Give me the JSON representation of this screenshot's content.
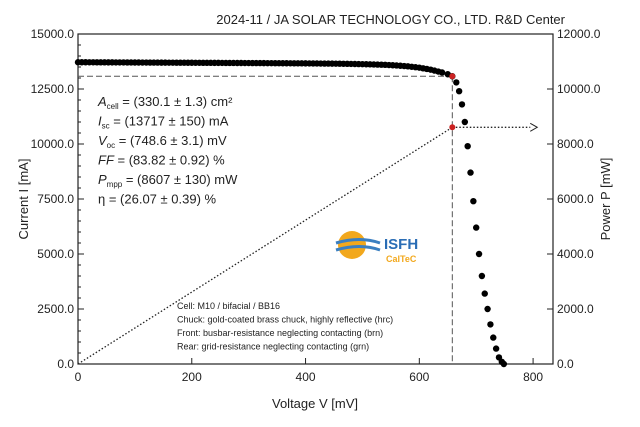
{
  "chart_data": {
    "type": "scatter",
    "title": "2024-11 / JA SOLAR TECHNOLOGY CO., LTD. R&D Center",
    "xlabel": "Voltage V [mV]",
    "ylabel": "Current I [mA]",
    "y2label": "Power P [mW]",
    "xlim": [
      0,
      835
    ],
    "ylim": [
      0,
      15000
    ],
    "y2lim": [
      0,
      12000
    ],
    "xticks": [
      "0",
      "200",
      "400",
      "600",
      "800"
    ],
    "xtick_values": [
      0,
      200,
      400,
      600,
      800
    ],
    "yticks": [
      "0.0",
      "2500.0",
      "5000.0",
      "7500.0",
      "10000.0",
      "12500.0",
      "15000.0"
    ],
    "ytick_values": [
      0,
      2500,
      5000,
      7500,
      10000,
      12500,
      15000
    ],
    "y2ticks": [
      "0.0",
      "2000.0",
      "4000.0",
      "6000.0",
      "8000.0",
      "10000.0",
      "12000.0"
    ],
    "y2tick_values": [
      0,
      2000,
      4000,
      6000,
      8000,
      10000,
      12000
    ],
    "grid": false,
    "iv_curve": {
      "voltage_mV": [
        0,
        20,
        40,
        60,
        80,
        100,
        120,
        140,
        160,
        180,
        200,
        220,
        240,
        260,
        280,
        300,
        320,
        340,
        360,
        380,
        400,
        420,
        440,
        460,
        480,
        500,
        520,
        540,
        560,
        580,
        600,
        620,
        640,
        650,
        658,
        665,
        670,
        675,
        680,
        685,
        690,
        695,
        700,
        705,
        710,
        715,
        720,
        725,
        730,
        735,
        740,
        745,
        748.6
      ],
      "current_mA": [
        13717,
        13715,
        13712,
        13710,
        13708,
        13705,
        13703,
        13700,
        13698,
        13695,
        13693,
        13690,
        13688,
        13685,
        13682,
        13680,
        13677,
        13674,
        13671,
        13668,
        13665,
        13660,
        13655,
        13650,
        13640,
        13630,
        13615,
        13600,
        13570,
        13530,
        13470,
        13380,
        13250,
        13170,
        13080,
        12800,
        12400,
        11800,
        11000,
        9900,
        8700,
        7400,
        6200,
        5000,
        4000,
        3200,
        2500,
        1800,
        1200,
        700,
        300,
        100,
        0
      ]
    },
    "mpp": {
      "voltage_mV": 658,
      "current_mA": 13080,
      "power_mW": 8607
    },
    "colors": {
      "iv_dots": "#000000",
      "mpp_marker": "#cc2222",
      "guides": "#555555"
    },
    "parameters": [
      {
        "sym": "A",
        "sub": "cell",
        "val": " = (330.1 ± 1.3) cm²"
      },
      {
        "sym": "I",
        "sub": "sc",
        "val": " = (13717 ± 150) mA"
      },
      {
        "sym": "V",
        "sub": "oc",
        "val": " = (748.6 ± 3.1) mV"
      },
      {
        "sym": "FF",
        "sub": "",
        "val": " = (83.82 ± 0.92) %"
      },
      {
        "sym": "P",
        "sub": "mpp",
        "val": " = (8607 ± 130) mW"
      },
      {
        "sym": "η",
        "sub": "",
        "val": " = (26.07 ± 0.39) %"
      }
    ],
    "notes": [
      "Cell: M10 / bifacial / BB16",
      "Chuck: gold-coated brass chuck, highly reflective (hrc)",
      "Front: busbar-resistance neglecting contacting (brn)",
      "Rear: grid-resistance neglecting contacting (grn)"
    ],
    "logo": {
      "line1": "ISFH",
      "line2": "CalTeC"
    }
  }
}
